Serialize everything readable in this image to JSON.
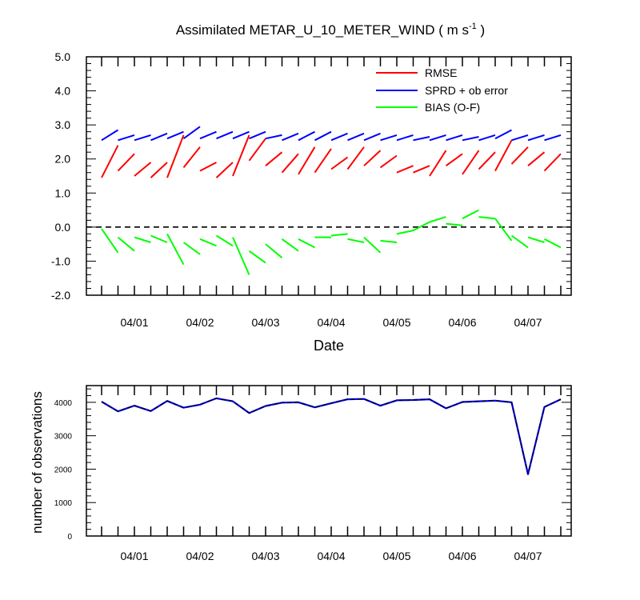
{
  "chart_data": [
    {
      "type": "line",
      "title": "Assimilated METAR_U_10_METER_WIND ( m s",
      "title_unit_superscript": "-1",
      "title_close": " )",
      "xlabel": "Date",
      "ylabel": "",
      "ylim": [
        -2.0,
        5.0
      ],
      "yticks": [
        "5.0",
        "4.0",
        "3.0",
        "2.0",
        "1.0",
        "0.0",
        "-1.0",
        "-2.0"
      ],
      "xticks": [
        "04/01",
        "04/02",
        "04/03",
        "04/04",
        "04/05",
        "04/06",
        "04/07"
      ],
      "legend_position": "top-right",
      "zero_line": "dashed",
      "colors": {
        "RMSE": "#ff0000",
        "SPRD": "#0000ff",
        "BIAS": "#00ff00"
      },
      "series": [
        {
          "name": "RMSE",
          "segments": [
            [
              [
                -0.5,
                1.45
              ],
              [
                -0.25,
                2.4
              ]
            ],
            [
              [
                -0.25,
                1.65
              ],
              [
                0,
                2.15
              ]
            ],
            [
              [
                0,
                1.5
              ],
              [
                0.25,
                1.9
              ]
            ],
            [
              [
                0.25,
                1.45
              ],
              [
                0.5,
                1.9
              ]
            ],
            [
              [
                0.5,
                1.45
              ],
              [
                0.75,
                2.7
              ]
            ],
            [
              [
                0.75,
                1.75
              ],
              [
                1,
                2.35
              ]
            ],
            [
              [
                1,
                1.65
              ],
              [
                1.25,
                1.9
              ]
            ],
            [
              [
                1.25,
                1.45
              ],
              [
                1.5,
                1.9
              ]
            ],
            [
              [
                1.5,
                1.5
              ],
              [
                1.75,
                2.7
              ]
            ],
            [
              [
                1.75,
                1.95
              ],
              [
                2,
                2.6
              ]
            ],
            [
              [
                2,
                1.8
              ],
              [
                2.25,
                2.2
              ]
            ],
            [
              [
                2.25,
                1.6
              ],
              [
                2.5,
                2.15
              ]
            ],
            [
              [
                2.5,
                1.55
              ],
              [
                2.75,
                2.35
              ]
            ],
            [
              [
                2.75,
                1.6
              ],
              [
                3,
                2.3
              ]
            ],
            [
              [
                3,
                1.7
              ],
              [
                3.25,
                2.05
              ]
            ],
            [
              [
                3.25,
                1.7
              ],
              [
                3.5,
                2.35
              ]
            ],
            [
              [
                3.5,
                1.8
              ],
              [
                3.75,
                2.25
              ]
            ],
            [
              [
                3.75,
                1.75
              ],
              [
                4,
                2.1
              ]
            ],
            [
              [
                4,
                1.6
              ],
              [
                4.25,
                1.8
              ]
            ],
            [
              [
                4.25,
                1.6
              ],
              [
                4.5,
                1.8
              ]
            ],
            [
              [
                4.5,
                1.5
              ],
              [
                4.75,
                2.25
              ]
            ],
            [
              [
                4.75,
                1.8
              ],
              [
                5,
                2.15
              ]
            ],
            [
              [
                5,
                1.55
              ],
              [
                5.25,
                2.25
              ]
            ],
            [
              [
                5.25,
                1.7
              ],
              [
                5.5,
                2.2
              ]
            ],
            [
              [
                5.5,
                1.65
              ],
              [
                5.75,
                2.55
              ]
            ],
            [
              [
                5.75,
                1.85
              ],
              [
                6,
                2.35
              ]
            ],
            [
              [
                6,
                1.8
              ],
              [
                6.25,
                2.2
              ]
            ],
            [
              [
                6.25,
                1.65
              ],
              [
                6.5,
                2.15
              ]
            ]
          ]
        },
        {
          "name": "SPRD + ob error",
          "segments": [
            [
              [
                -0.5,
                2.55
              ],
              [
                -0.25,
                2.85
              ]
            ],
            [
              [
                -0.25,
                2.55
              ],
              [
                0,
                2.7
              ]
            ],
            [
              [
                0,
                2.55
              ],
              [
                0.25,
                2.7
              ]
            ],
            [
              [
                0.25,
                2.55
              ],
              [
                0.5,
                2.75
              ]
            ],
            [
              [
                0.5,
                2.6
              ],
              [
                0.75,
                2.8
              ]
            ],
            [
              [
                0.75,
                2.6
              ],
              [
                1,
                2.95
              ]
            ],
            [
              [
                1,
                2.6
              ],
              [
                1.25,
                2.8
              ]
            ],
            [
              [
                1.25,
                2.6
              ],
              [
                1.5,
                2.8
              ]
            ],
            [
              [
                1.5,
                2.6
              ],
              [
                1.75,
                2.8
              ]
            ],
            [
              [
                1.75,
                2.6
              ],
              [
                2,
                2.8
              ]
            ],
            [
              [
                2,
                2.6
              ],
              [
                2.25,
                2.7
              ]
            ],
            [
              [
                2.25,
                2.55
              ],
              [
                2.5,
                2.75
              ]
            ],
            [
              [
                2.5,
                2.55
              ],
              [
                2.75,
                2.8
              ]
            ],
            [
              [
                2.75,
                2.55
              ],
              [
                3,
                2.8
              ]
            ],
            [
              [
                3,
                2.55
              ],
              [
                3.25,
                2.75
              ]
            ],
            [
              [
                3.25,
                2.55
              ],
              [
                3.5,
                2.75
              ]
            ],
            [
              [
                3.5,
                2.55
              ],
              [
                3.75,
                2.75
              ]
            ],
            [
              [
                3.75,
                2.55
              ],
              [
                4,
                2.7
              ]
            ],
            [
              [
                4,
                2.55
              ],
              [
                4.25,
                2.7
              ]
            ],
            [
              [
                4.25,
                2.55
              ],
              [
                4.5,
                2.65
              ]
            ],
            [
              [
                4.5,
                2.55
              ],
              [
                4.75,
                2.7
              ]
            ],
            [
              [
                4.75,
                2.55
              ],
              [
                5,
                2.7
              ]
            ],
            [
              [
                5,
                2.55
              ],
              [
                5.25,
                2.65
              ]
            ],
            [
              [
                5.25,
                2.55
              ],
              [
                5.5,
                2.7
              ]
            ],
            [
              [
                5.5,
                2.6
              ],
              [
                5.75,
                2.85
              ]
            ],
            [
              [
                5.75,
                2.55
              ],
              [
                6,
                2.7
              ]
            ],
            [
              [
                6,
                2.55
              ],
              [
                6.25,
                2.7
              ]
            ],
            [
              [
                6.25,
                2.55
              ],
              [
                6.5,
                2.7
              ]
            ]
          ]
        },
        {
          "name": "BIAS (O-F)",
          "segments": [
            [
              [
                -0.5,
                -0.05
              ],
              [
                -0.25,
                -0.75
              ]
            ],
            [
              [
                -0.25,
                -0.3
              ],
              [
                0,
                -0.7
              ]
            ],
            [
              [
                0,
                -0.3
              ],
              [
                0.25,
                -0.45
              ]
            ],
            [
              [
                0.25,
                -0.25
              ],
              [
                0.5,
                -0.45
              ]
            ],
            [
              [
                0.5,
                -0.2
              ],
              [
                0.75,
                -1.1
              ]
            ],
            [
              [
                0.75,
                -0.45
              ],
              [
                1,
                -0.8
              ]
            ],
            [
              [
                1,
                -0.35
              ],
              [
                1.25,
                -0.55
              ]
            ],
            [
              [
                1.25,
                -0.25
              ],
              [
                1.5,
                -0.55
              ]
            ],
            [
              [
                1.5,
                -0.3
              ],
              [
                1.75,
                -1.4
              ]
            ],
            [
              [
                1.75,
                -0.7
              ],
              [
                2,
                -1.05
              ]
            ],
            [
              [
                2,
                -0.5
              ],
              [
                2.25,
                -0.9
              ]
            ],
            [
              [
                2.25,
                -0.35
              ],
              [
                2.5,
                -0.7
              ]
            ],
            [
              [
                2.5,
                -0.35
              ],
              [
                2.75,
                -0.6
              ]
            ],
            [
              [
                2.75,
                -0.3
              ],
              [
                3,
                -0.3
              ]
            ],
            [
              [
                3,
                -0.25
              ],
              [
                3.25,
                -0.2
              ]
            ],
            [
              [
                3.25,
                -0.35
              ],
              [
                3.5,
                -0.45
              ]
            ],
            [
              [
                3.5,
                -0.3
              ],
              [
                3.75,
                -0.75
              ]
            ],
            [
              [
                3.75,
                -0.4
              ],
              [
                4,
                -0.45
              ]
            ],
            [
              [
                4,
                -0.2
              ],
              [
                4.25,
                -0.1
              ]
            ],
            [
              [
                4.25,
                -0.1
              ],
              [
                4.5,
                0.15
              ]
            ],
            [
              [
                4.5,
                0.15
              ],
              [
                4.75,
                0.3
              ]
            ],
            [
              [
                4.75,
                0.1
              ],
              [
                5,
                0.05
              ]
            ],
            [
              [
                5,
                0.25
              ],
              [
                5.25,
                0.5
              ]
            ],
            [
              [
                5.25,
                0.3
              ],
              [
                5.5,
                0.25
              ]
            ],
            [
              [
                5.5,
                0.25
              ],
              [
                5.75,
                -0.4
              ]
            ],
            [
              [
                5.75,
                -0.25
              ],
              [
                6,
                -0.6
              ]
            ],
            [
              [
                6,
                -0.3
              ],
              [
                6.25,
                -0.45
              ]
            ],
            [
              [
                6.25,
                -0.35
              ],
              [
                6.5,
                -0.6
              ]
            ]
          ]
        }
      ]
    },
    {
      "type": "line",
      "title": "",
      "xlabel": "",
      "ylabel": "number of observations",
      "ylim": [
        0,
        4500
      ],
      "yticks": [
        "4000",
        "3000",
        "2000",
        "1000",
        "0"
      ],
      "xticks": [
        "04/01",
        "04/02",
        "04/03",
        "04/04",
        "04/05",
        "04/06",
        "04/07"
      ],
      "colors": {
        "possible": "#0000ff",
        "used": "#000000"
      },
      "series": [
        {
          "name": "",
          "x": [
            -0.5,
            -0.25,
            0,
            0.25,
            0.5,
            0.75,
            1,
            1.25,
            1.5,
            1.75,
            2,
            2.25,
            2.5,
            2.75,
            3,
            3.25,
            3.5,
            3.75,
            4,
            4.25,
            4.5,
            4.75,
            5,
            5.25,
            5.5,
            5.75,
            6,
            6.25,
            6.5
          ],
          "values": [
            4020,
            3730,
            3900,
            3740,
            4040,
            3840,
            3930,
            4120,
            4030,
            3680,
            3890,
            3990,
            4000,
            3850,
            3970,
            4090,
            4100,
            3900,
            4060,
            4070,
            4090,
            3820,
            4010,
            4030,
            4050,
            4000,
            1850,
            3860,
            4090
          ]
        }
      ]
    }
  ]
}
